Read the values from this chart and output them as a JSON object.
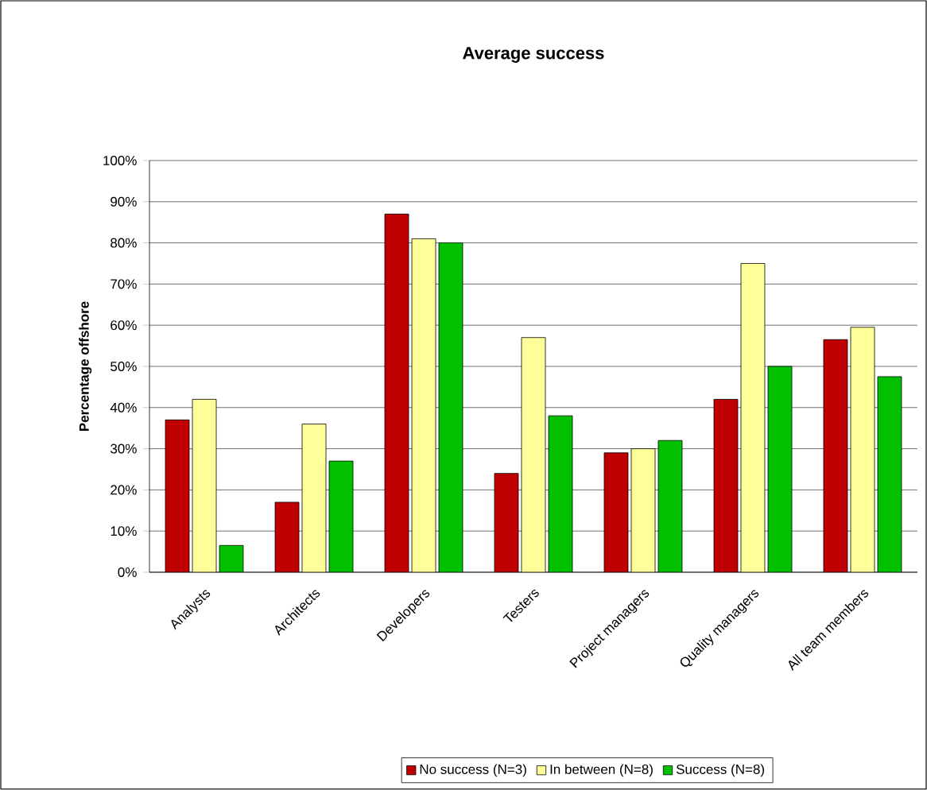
{
  "chart_data": {
    "type": "bar",
    "title": "Average success",
    "ylabel": "Percentage offshore",
    "categories": [
      "Analysts",
      "Architects",
      "Developers",
      "Testers",
      "Project managers",
      "Quality managers",
      "All team members"
    ],
    "series": [
      {
        "name": "No success (N=3)",
        "color": "#c00000",
        "values": [
          37,
          17,
          87,
          24,
          29,
          42,
          56.5
        ]
      },
      {
        "name": "In between (N=8)",
        "color": "#ffff99",
        "values": [
          42,
          36,
          81,
          57,
          30,
          75,
          59.5
        ]
      },
      {
        "name": "Success (N=8)",
        "color": "#00c000",
        "values": [
          6.5,
          27,
          80,
          38,
          32,
          50,
          47.5
        ]
      }
    ],
    "ylim": [
      0,
      100
    ],
    "yticks": [
      {
        "value": 0,
        "label": "0%"
      },
      {
        "value": 10,
        "label": "10%"
      },
      {
        "value": 20,
        "label": "20%"
      },
      {
        "value": 30,
        "label": "30%"
      },
      {
        "value": 40,
        "label": "40%"
      },
      {
        "value": 50,
        "label": "50%"
      },
      {
        "value": 60,
        "label": "60%"
      },
      {
        "value": 70,
        "label": "70%"
      },
      {
        "value": 80,
        "label": "80%"
      },
      {
        "value": 90,
        "label": "90%"
      },
      {
        "value": 100,
        "label": "100%"
      }
    ],
    "grid": "y",
    "legend": "bottom"
  }
}
